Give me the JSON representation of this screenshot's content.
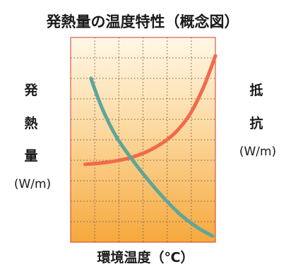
{
  "chart_data": {
    "type": "line",
    "title": "発熱量の温度特性（概念図）",
    "xlabel": "環境温度（℃）",
    "ylabel_left": {
      "chars": [
        "発",
        "熱",
        "量"
      ],
      "unit": "(W/m)"
    },
    "ylabel_right": {
      "chars": [
        "抵",
        "抗"
      ],
      "unit": "(W/m)"
    },
    "grid": true,
    "xlim": [
      0,
      1
    ],
    "ylim": [
      0,
      1
    ],
    "series": [
      {
        "color": "#f26a4a",
        "x": [
          0.1,
          0.25,
          0.4,
          0.55,
          0.7,
          0.82,
          0.92,
          1.0
        ],
        "y": [
          0.38,
          0.39,
          0.41,
          0.45,
          0.52,
          0.62,
          0.76,
          0.91
        ]
      },
      {
        "color": "#5fa59a",
        "x": [
          0.14,
          0.22,
          0.32,
          0.45,
          0.6,
          0.75,
          0.88,
          0.98
        ],
        "y": [
          0.8,
          0.65,
          0.51,
          0.38,
          0.25,
          0.14,
          0.07,
          0.03
        ]
      }
    ],
    "colors": {
      "plot_background_top": "#fff7e6",
      "plot_background_bottom": "#f6a83c",
      "frame": "#d43a2a",
      "grid": "#6e5a4a"
    }
  }
}
